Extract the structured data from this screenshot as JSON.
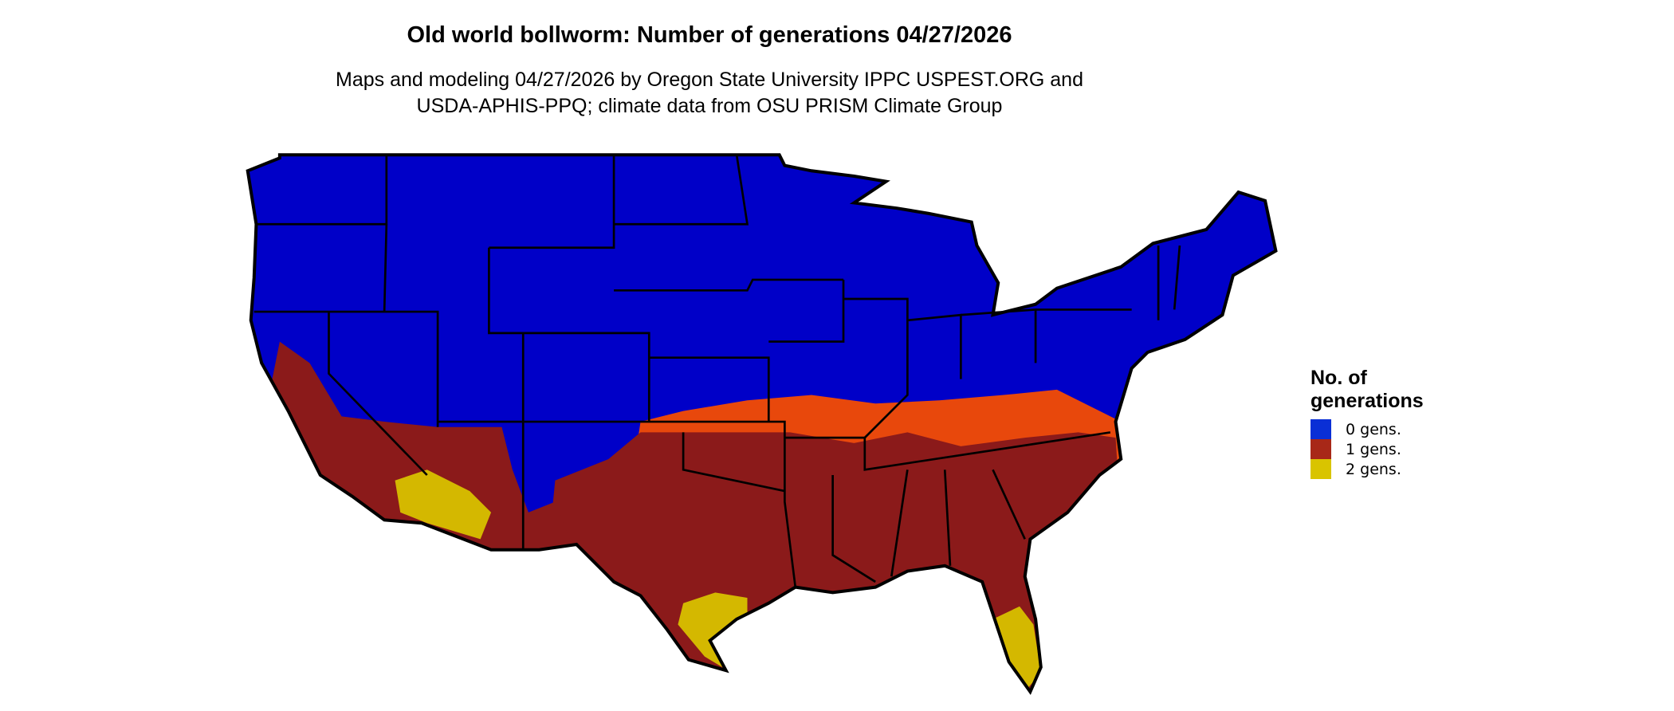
{
  "title": "Old world bollworm: Number of generations 04/27/2026",
  "subtitle_lines": [
    "Maps and modeling 04/27/2026 by Oregon State University IPPC USPEST.ORG and",
    "USDA-APHIS-PPQ; climate data from OSU PRISM Climate Group"
  ],
  "legend": {
    "title_lines": [
      "No. of",
      "generations"
    ],
    "items": [
      {
        "label": "0 gens.",
        "color": "#0a2fd6"
      },
      {
        "label": "1 gens.",
        "color": "#a82818"
      },
      {
        "label": "2 gens.",
        "color": "#d9c400"
      }
    ]
  },
  "map_colors": {
    "zero": "#0000c8",
    "one": "#8b1a1a",
    "one_transition": "#e8480c",
    "two": "#d4b800",
    "border": "#000000"
  }
}
